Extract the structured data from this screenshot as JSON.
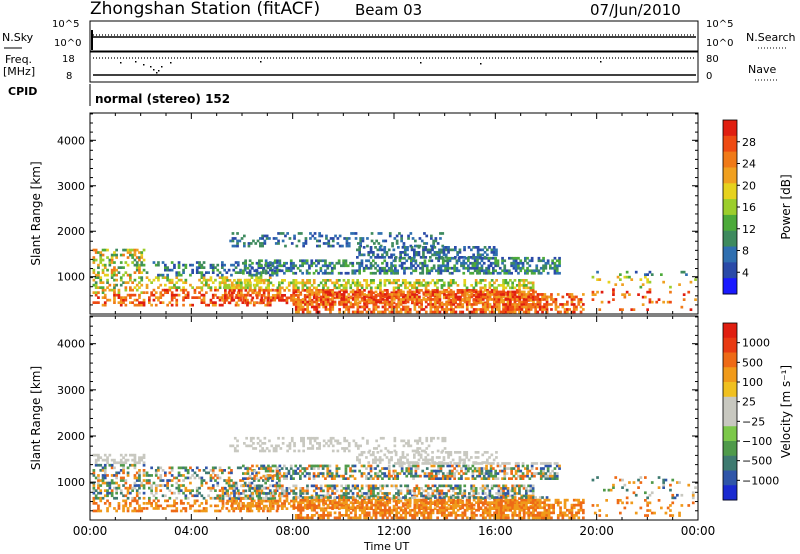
{
  "header": {
    "station": "Zhongshan Station (fitACF)",
    "beam": "Beam 03",
    "date": "07/Jun/2010"
  },
  "top_panels": {
    "nsky_label": "N.Sky",
    "nsearch_label": "N.Search",
    "freq_label_1": "Freq.",
    "freq_label_2": "[MHz]",
    "nave_label": "Nave",
    "cpid_label": "CPID",
    "cpid_value": "normal (stereo) 152",
    "nsky_ticks": [
      "10^5",
      "10^0"
    ],
    "nsearch_ticks": [
      "10^5",
      "10^0"
    ],
    "freq_ticks": [
      "18",
      "8"
    ],
    "nave_ticks": [
      "80",
      "0"
    ]
  },
  "chart_data": [
    {
      "type": "heatmap",
      "title": "",
      "xlabel": "Time UT",
      "ylabel": "Slant Range [km]",
      "xlim": [
        "00:00",
        "00:00"
      ],
      "xticks": [
        "00:00",
        "04:00",
        "08:00",
        "12:00",
        "16:00",
        "20:00",
        "00:00"
      ],
      "ylim": [
        180,
        4600
      ],
      "yticks": [
        1000,
        2000,
        3000,
        4000
      ],
      "colorbar": {
        "label": "Power [dB]",
        "ticks": [
          4,
          8,
          12,
          16,
          20,
          24,
          28
        ],
        "colors": [
          "#1a1aff",
          "#2a4aa8",
          "#2f6fb0",
          "#3e8a5e",
          "#4caa3a",
          "#9cce2c",
          "#e6d21e",
          "#f0a020",
          "#f07a18",
          "#ee4a12",
          "#e01e10"
        ]
      }
    },
    {
      "type": "heatmap",
      "title": "",
      "xlabel": "Time UT",
      "ylabel": "Slant Range [km]",
      "xlim": [
        "00:00",
        "00:00"
      ],
      "xticks": [
        "00:00",
        "04:00",
        "08:00",
        "12:00",
        "16:00",
        "20:00",
        "00:00"
      ],
      "ylim": [
        180,
        4600
      ],
      "yticks": [
        1000,
        2000,
        3000,
        4000
      ],
      "colorbar": {
        "label": "Velocity [m s⁻¹]",
        "ticks": [
          "1000",
          "500",
          "100",
          "25",
          "−25",
          "−100",
          "−500",
          "−1000"
        ],
        "colors": [
          "#1a2ad0",
          "#2f55a8",
          "#3e7a70",
          "#4f9a4a",
          "#7cc84a",
          "#c8c8c0",
          "#c8c8c0",
          "#f0c020",
          "#f09a1a",
          "#ee6a16",
          "#e83a12",
          "#e01e10"
        ]
      }
    }
  ]
}
